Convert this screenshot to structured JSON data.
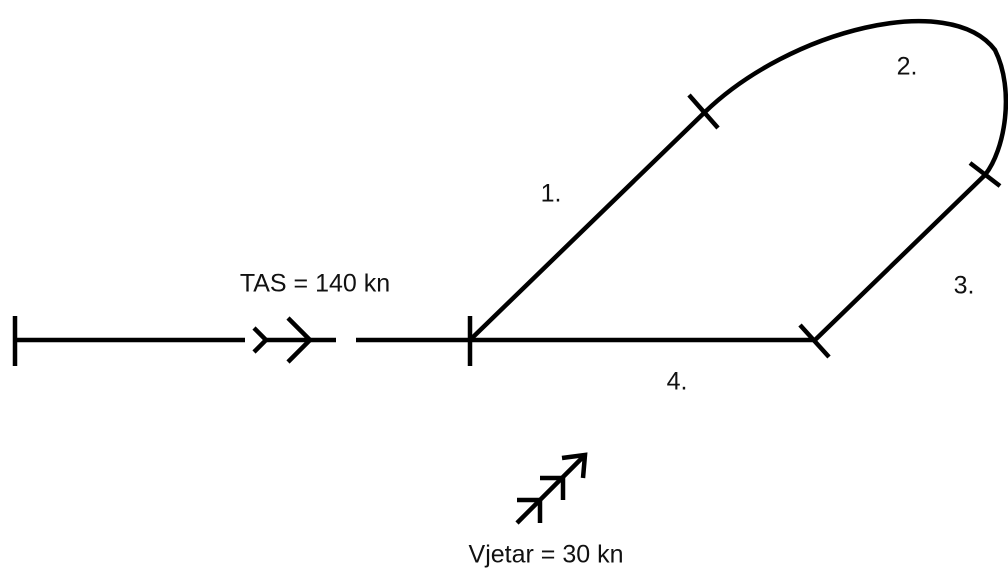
{
  "speed_label": "TAS = 140 kn",
  "wind_label": "Vjetar = 30 kn",
  "legs": [
    "1.",
    "2.",
    "3.",
    "4."
  ]
}
